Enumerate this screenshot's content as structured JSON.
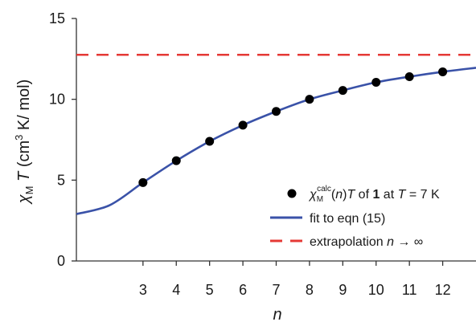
{
  "chart_data": {
    "type": "line",
    "xlabel": "n",
    "ylabel": {
      "symbol": "χ",
      "symbol_sub": "M",
      "var": "T",
      "unit_open": " (cm",
      "unit_sup": "3",
      "unit_close": " K/ mol)"
    },
    "xlim": [
      1.0,
      13.0
    ],
    "ylim": [
      0,
      15
    ],
    "xticks": [
      3,
      4,
      5,
      6,
      7,
      8,
      9,
      10,
      11,
      12
    ],
    "yticks": [
      0,
      5,
      10,
      15
    ],
    "series": [
      {
        "kind": "scatter",
        "color": "#000000",
        "legend": {
          "symbol": "χ",
          "sub": "M",
          "sup": "calc",
          "mid1": "(",
          "n": "n",
          "mid2": ")",
          "T1": "T",
          "of": " of ",
          "bold": "1",
          "at": " at ",
          "T2": "T",
          "eq": " = 7 K"
        },
        "points": [
          {
            "n": 3,
            "value": 4.85
          },
          {
            "n": 4,
            "value": 6.2
          },
          {
            "n": 5,
            "value": 7.4
          },
          {
            "n": 6,
            "value": 8.4
          },
          {
            "n": 7,
            "value": 9.25
          },
          {
            "n": 8,
            "value": 10.0
          },
          {
            "n": 9,
            "value": 10.55
          },
          {
            "n": 10,
            "value": 11.05
          },
          {
            "n": 11,
            "value": 11.4
          },
          {
            "n": 12,
            "value": 11.7
          }
        ]
      },
      {
        "kind": "line",
        "color": "#3a52a8",
        "legend": "fit to eqn (15)",
        "curve": [
          {
            "n": 1.0,
            "value": 2.9
          },
          {
            "n": 2.0,
            "value": 3.45
          },
          {
            "n": 3.0,
            "value": 4.85
          },
          {
            "n": 4.0,
            "value": 6.2
          },
          {
            "n": 5.0,
            "value": 7.4
          },
          {
            "n": 6.0,
            "value": 8.4
          },
          {
            "n": 7.0,
            "value": 9.25
          },
          {
            "n": 8.0,
            "value": 10.0
          },
          {
            "n": 9.0,
            "value": 10.55
          },
          {
            "n": 10.0,
            "value": 11.05
          },
          {
            "n": 11.0,
            "value": 11.4
          },
          {
            "n": 12.0,
            "value": 11.7
          },
          {
            "n": 13.0,
            "value": 11.95
          }
        ]
      },
      {
        "kind": "hline",
        "color": "#e53935",
        "value": 12.75,
        "legend": {
          "text": "extrapolation ",
          "n": "n",
          "arrow": " → ∞"
        }
      }
    ],
    "grid": false,
    "legend_position": "bottom-right"
  }
}
